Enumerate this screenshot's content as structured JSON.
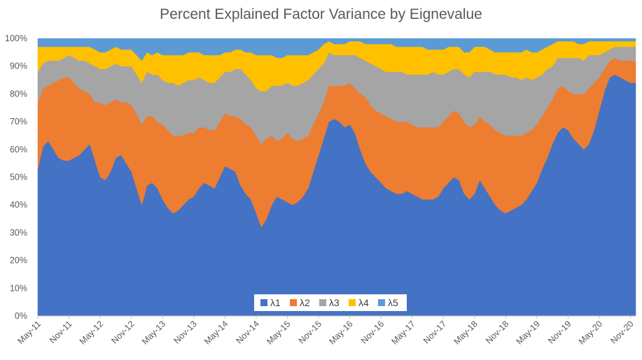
{
  "chart_data": {
    "type": "area",
    "stacked": true,
    "percent_stacked": true,
    "title": "Percent Explained Factor Variance by Eignevalue",
    "xlabel": "",
    "ylabel": "",
    "ylim": [
      0,
      100
    ],
    "y_ticks": [
      "0%",
      "10%",
      "20%",
      "30%",
      "40%",
      "50%",
      "60%",
      "70%",
      "80%",
      "90%",
      "100%"
    ],
    "x_ticks": [
      "May-11",
      "Nov-11",
      "May-12",
      "Nov-12",
      "May-13",
      "Nov-13",
      "May-14",
      "Nov-14",
      "May-15",
      "Nov-15",
      "May-16",
      "Nov-16",
      "May-17",
      "Nov-17",
      "May-18",
      "Nov-18",
      "May-19",
      "Nov-19",
      "May-20",
      "Nov-20"
    ],
    "grid": false,
    "legend_position": "bottom-center",
    "x_unit": "month",
    "x": [
      "May-11",
      "Jun-11",
      "Jul-11",
      "Aug-11",
      "Sep-11",
      "Oct-11",
      "Nov-11",
      "Dec-11",
      "Jan-12",
      "Feb-12",
      "Mar-12",
      "Apr-12",
      "May-12",
      "Jun-12",
      "Jul-12",
      "Aug-12",
      "Sep-12",
      "Oct-12",
      "Nov-12",
      "Dec-12",
      "Jan-13",
      "Feb-13",
      "Mar-13",
      "Apr-13",
      "May-13",
      "Jun-13",
      "Jul-13",
      "Aug-13",
      "Sep-13",
      "Oct-13",
      "Nov-13",
      "Dec-13",
      "Jan-14",
      "Feb-14",
      "Mar-14",
      "Apr-14",
      "May-14",
      "Jun-14",
      "Jul-14",
      "Aug-14",
      "Sep-14",
      "Oct-14",
      "Nov-14",
      "Dec-14",
      "Jan-15",
      "Feb-15",
      "Mar-15",
      "Apr-15",
      "May-15",
      "Jun-15",
      "Jul-15",
      "Aug-15",
      "Sep-15",
      "Oct-15",
      "Nov-15",
      "Dec-15",
      "Jan-16",
      "Feb-16",
      "Mar-16",
      "Apr-16",
      "May-16",
      "Jun-16",
      "Jul-16",
      "Aug-16",
      "Sep-16",
      "Oct-16",
      "Nov-16",
      "Dec-16",
      "Jan-17",
      "Feb-17",
      "Mar-17",
      "Apr-17",
      "May-17",
      "Jun-17",
      "Jul-17",
      "Aug-17",
      "Sep-17",
      "Oct-17",
      "Nov-17",
      "Dec-17",
      "Jan-18",
      "Feb-18",
      "Mar-18",
      "Apr-18",
      "May-18",
      "Jun-18",
      "Jul-18",
      "Aug-18",
      "Sep-18",
      "Oct-18",
      "Nov-18",
      "Dec-18",
      "Jan-19",
      "Feb-19",
      "Mar-19",
      "Apr-19",
      "May-19",
      "Jun-19",
      "Jul-19",
      "Aug-19",
      "Sep-19",
      "Oct-19",
      "Nov-19",
      "Dec-19",
      "Jan-20",
      "Feb-20",
      "Mar-20",
      "Apr-20",
      "May-20",
      "Jun-20",
      "Jul-20",
      "Aug-20",
      "Sep-20",
      "Oct-20",
      "Nov-20",
      "Dec-20"
    ],
    "series": [
      {
        "name": "λ1",
        "color": "#4472C4",
        "values": [
          53,
          61,
          63,
          60,
          57,
          56,
          56,
          57,
          58,
          60,
          62,
          56,
          50,
          49,
          52,
          57,
          58,
          55,
          52,
          46,
          40,
          47,
          48,
          46,
          42,
          39,
          37,
          38,
          40,
          42,
          43,
          46,
          48,
          47,
          46,
          50,
          54,
          53,
          52,
          47,
          44,
          42,
          37,
          32,
          35,
          40,
          43,
          42,
          41,
          40,
          41,
          43,
          46,
          52,
          58,
          64,
          70,
          71,
          70,
          68,
          69,
          66,
          60,
          55,
          52,
          50,
          48,
          46,
          45,
          44,
          44,
          45,
          44,
          43,
          42,
          42,
          42,
          43,
          46,
          48,
          50,
          49,
          44,
          42,
          44,
          49,
          46,
          43,
          40,
          38,
          37,
          38,
          39,
          40,
          42,
          45,
          48,
          53,
          57,
          62,
          66,
          68,
          67,
          64,
          62,
          60,
          62,
          67,
          74,
          81,
          86,
          87,
          86,
          85,
          84,
          84
        ]
      },
      {
        "name": "λ2",
        "color": "#ED7D31",
        "values": [
          24,
          21,
          20,
          24,
          28,
          30,
          30,
          27,
          24,
          21,
          18,
          21,
          27,
          27,
          25,
          21,
          19,
          22,
          24,
          27,
          29,
          25,
          24,
          24,
          27,
          28,
          28,
          27,
          25,
          24,
          23,
          22,
          20,
          20,
          21,
          20,
          19,
          19,
          20,
          24,
          25,
          26,
          28,
          30,
          29,
          25,
          20,
          22,
          25,
          24,
          22,
          21,
          19,
          17,
          15,
          13,
          13,
          12,
          13,
          15,
          15,
          16,
          20,
          24,
          24,
          24,
          25,
          26,
          26,
          26,
          26,
          25,
          25,
          25,
          26,
          26,
          26,
          25,
          24,
          24,
          24,
          24,
          26,
          26,
          25,
          23,
          24,
          26,
          27,
          28,
          28,
          27,
          26,
          25,
          24,
          22,
          21,
          19,
          18,
          16,
          16,
          15,
          14,
          16,
          18,
          20,
          20,
          17,
          12,
          8,
          6,
          6,
          6,
          7,
          8,
          8
        ]
      },
      {
        "name": "λ3",
        "color": "#A5A5A5",
        "values": [
          11,
          9,
          9,
          8,
          7,
          7,
          8,
          9,
          10,
          11,
          11,
          13,
          12,
          13,
          13,
          13,
          13,
          13,
          14,
          14,
          15,
          16,
          15,
          17,
          16,
          17,
          19,
          18,
          19,
          19,
          19,
          18,
          17,
          17,
          17,
          16,
          15,
          16,
          17,
          18,
          18,
          17,
          17,
          19,
          17,
          18,
          20,
          19,
          18,
          19,
          20,
          20,
          20,
          18,
          16,
          14,
          12,
          11,
          11,
          11,
          10,
          12,
          13,
          13,
          15,
          16,
          16,
          16,
          17,
          18,
          18,
          17,
          18,
          19,
          19,
          19,
          20,
          19,
          17,
          16,
          15,
          16,
          17,
          18,
          19,
          16,
          18,
          19,
          20,
          21,
          22,
          21,
          21,
          20,
          20,
          18,
          17,
          15,
          14,
          12,
          11,
          10,
          12,
          13,
          13,
          12,
          12,
          10,
          8,
          6,
          4,
          4,
          5,
          5,
          5,
          5
        ]
      },
      {
        "name": "λ4",
        "color": "#FFC000",
        "values": [
          9,
          6,
          5,
          5,
          5,
          4,
          3,
          4,
          5,
          5,
          6,
          6,
          6,
          6,
          6,
          6,
          6,
          6,
          6,
          7,
          8,
          7,
          7,
          8,
          9,
          10,
          10,
          11,
          10,
          10,
          10,
          9,
          9,
          10,
          10,
          8,
          7,
          7,
          7,
          7,
          8,
          10,
          12,
          13,
          13,
          11,
          10,
          10,
          10,
          11,
          11,
          10,
          9,
          8,
          7,
          7,
          4,
          4,
          4,
          4,
          5,
          5,
          6,
          6,
          7,
          8,
          9,
          10,
          10,
          9,
          9,
          10,
          10,
          10,
          10,
          9,
          8,
          9,
          9,
          9,
          8,
          8,
          8,
          9,
          9,
          9,
          9,
          8,
          8,
          8,
          8,
          9,
          9,
          10,
          10,
          10,
          9,
          9,
          8,
          8,
          6,
          6,
          6,
          6,
          5,
          6,
          5,
          5,
          5,
          4,
          3,
          2,
          2,
          2,
          2,
          2
        ]
      },
      {
        "name": "λ5",
        "color": "#5B9BD5",
        "values": [
          3,
          3,
          3,
          3,
          3,
          3,
          3,
          3,
          3,
          3,
          3,
          4,
          5,
          5,
          4,
          3,
          4,
          4,
          4,
          6,
          8,
          5,
          6,
          5,
          6,
          6,
          6,
          6,
          6,
          5,
          5,
          5,
          6,
          6,
          6,
          6,
          5,
          5,
          4,
          4,
          5,
          5,
          6,
          6,
          6,
          6,
          7,
          7,
          6,
          6,
          6,
          6,
          6,
          5,
          4,
          2,
          1,
          2,
          2,
          2,
          1,
          1,
          1,
          2,
          2,
          2,
          2,
          2,
          2,
          3,
          3,
          3,
          3,
          3,
          3,
          4,
          4,
          4,
          4,
          3,
          3,
          3,
          5,
          5,
          3,
          3,
          3,
          4,
          5,
          5,
          5,
          5,
          5,
          5,
          4,
          5,
          5,
          4,
          3,
          2,
          1,
          1,
          1,
          1,
          2,
          2,
          1,
          1,
          1,
          1,
          1,
          1,
          1,
          1,
          1,
          1
        ]
      }
    ]
  }
}
